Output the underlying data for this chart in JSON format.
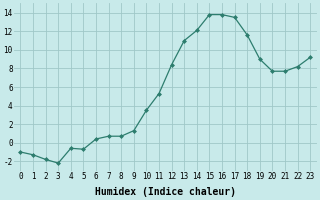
{
  "x": [
    0,
    1,
    2,
    3,
    4,
    5,
    6,
    7,
    8,
    9,
    10,
    11,
    12,
    13,
    14,
    15,
    16,
    17,
    18,
    19,
    20,
    21,
    22,
    23
  ],
  "y": [
    -1.0,
    -1.3,
    -1.8,
    -2.2,
    -0.6,
    -0.7,
    0.4,
    0.7,
    0.7,
    1.3,
    3.5,
    5.3,
    8.4,
    11.0,
    12.1,
    13.8,
    13.8,
    13.5,
    11.6,
    9.0,
    7.7,
    7.7,
    8.2,
    9.2
  ],
  "line_color": "#2d7d6e",
  "marker": "D",
  "marker_size": 2.0,
  "bg_color": "#c8eaea",
  "grid_color": "#a0c8c8",
  "xlabel": "Humidex (Indice chaleur)",
  "xlim": [
    -0.5,
    23.5
  ],
  "ylim": [
    -3,
    15
  ],
  "yticks": [
    -2,
    0,
    2,
    4,
    6,
    8,
    10,
    12,
    14
  ],
  "xticks": [
    0,
    1,
    2,
    3,
    4,
    5,
    6,
    7,
    8,
    9,
    10,
    11,
    12,
    13,
    14,
    15,
    16,
    17,
    18,
    19,
    20,
    21,
    22,
    23
  ],
  "xtick_labels": [
    "0",
    "1",
    "2",
    "3",
    "4",
    "5",
    "6",
    "7",
    "8",
    "9",
    "10",
    "11",
    "12",
    "13",
    "14",
    "15",
    "16",
    "17",
    "18",
    "19",
    "20",
    "21",
    "22",
    "23"
  ],
  "tick_fontsize": 5.5,
  "xlabel_fontsize": 7.0,
  "linewidth": 0.9
}
